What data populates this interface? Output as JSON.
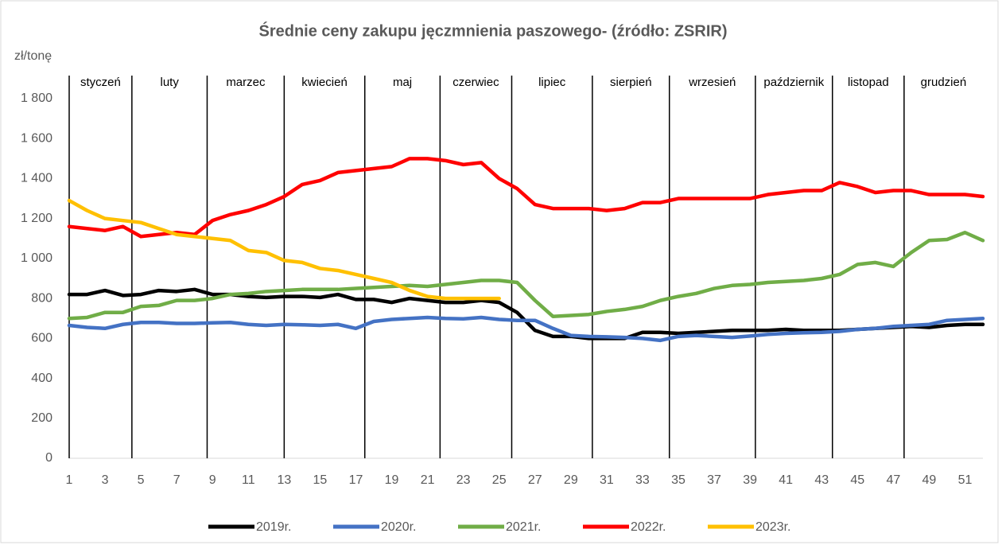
{
  "chart_data": {
    "type": "line",
    "title": "Średnie ceny zakupu jęczmnienia paszowego- (źródło: ZSRIR)",
    "y_label": "zł/tonę",
    "x": [
      1,
      2,
      3,
      4,
      5,
      6,
      7,
      8,
      9,
      10,
      11,
      12,
      13,
      14,
      15,
      16,
      17,
      18,
      19,
      20,
      21,
      22,
      23,
      24,
      25,
      26,
      27,
      28,
      29,
      30,
      31,
      32,
      33,
      34,
      35,
      36,
      37,
      38,
      39,
      40,
      41,
      42,
      43,
      44,
      45,
      46,
      47,
      48,
      49,
      50,
      51,
      52
    ],
    "xlim": [
      1,
      52
    ],
    "xticks": [
      1,
      3,
      5,
      7,
      9,
      11,
      13,
      15,
      17,
      19,
      21,
      23,
      25,
      27,
      29,
      31,
      33,
      35,
      37,
      39,
      41,
      43,
      45,
      47,
      49,
      51
    ],
    "ylim": [
      0,
      1800
    ],
    "yticks": [
      0,
      200,
      400,
      600,
      800,
      {
        "value": 1000,
        "label": "1 000"
      },
      {
        "value": 1200,
        "label": "1 200"
      },
      {
        "value": 1400,
        "label": "1 400"
      },
      {
        "value": 1600,
        "label": "1 600"
      },
      {
        "value": 1800,
        "label": "1 800"
      }
    ],
    "month_labels": [
      "styczeń",
      "luty",
      "marzec",
      "kwiecień",
      "maj",
      "czerwiec",
      "lipiec",
      "sierpień",
      "wrzesień",
      "październik",
      "listopad",
      "grudzień"
    ],
    "month_boundaries": [
      1,
      4.5,
      8.7,
      13,
      17.5,
      21.7,
      25.7,
      30.2,
      34.5,
      39.3,
      43.6,
      47.6
    ],
    "series": [
      {
        "name": "2019r.",
        "color": "#000000",
        "values": [
          820,
          820,
          840,
          815,
          820,
          840,
          835,
          845,
          820,
          820,
          810,
          805,
          810,
          810,
          805,
          820,
          795,
          795,
          780,
          800,
          790,
          780,
          780,
          790,
          780,
          730,
          640,
          610,
          610,
          600,
          600,
          600,
          630,
          630,
          625,
          630,
          635,
          640,
          640,
          640,
          645,
          640,
          640,
          640,
          645,
          650,
          655,
          660,
          655,
          665,
          670,
          670
        ]
      },
      {
        "name": "2020r.",
        "color": "#4472c4",
        "values": [
          665,
          655,
          650,
          670,
          680,
          680,
          675,
          675,
          678,
          680,
          670,
          665,
          670,
          668,
          665,
          670,
          650,
          685,
          695,
          700,
          705,
          700,
          698,
          705,
          695,
          690,
          690,
          650,
          615,
          610,
          608,
          605,
          600,
          590,
          610,
          615,
          610,
          605,
          612,
          620,
          625,
          628,
          630,
          635,
          645,
          650,
          660,
          665,
          670,
          690,
          695,
          700
        ]
      },
      {
        "name": "2021r.",
        "color": "#70ad47",
        "values": [
          700,
          705,
          730,
          730,
          760,
          765,
          790,
          790,
          800,
          820,
          825,
          835,
          840,
          845,
          845,
          845,
          850,
          855,
          860,
          865,
          860,
          870,
          880,
          890,
          890,
          880,
          790,
          710,
          715,
          720,
          735,
          745,
          760,
          790,
          810,
          825,
          850,
          865,
          870,
          880,
          885,
          890,
          900,
          920,
          970,
          980,
          960,
          1030,
          1090,
          1095,
          1130,
          1090
        ]
      },
      {
        "name": "2022r.",
        "color": "#ff0000",
        "values": [
          1160,
          1150,
          1140,
          1160,
          1110,
          1120,
          1130,
          1120,
          1190,
          1220,
          1240,
          1270,
          1310,
          1370,
          1390,
          1430,
          1440,
          1450,
          1460,
          1500,
          1500,
          1490,
          1470,
          1480,
          1400,
          1350,
          1270,
          1250,
          1250,
          1250,
          1240,
          1250,
          1280,
          1280,
          1300,
          1300,
          1300,
          1300,
          1300,
          1320,
          1330,
          1340,
          1340,
          1380,
          1360,
          1330,
          1340,
          1340,
          1320,
          1320,
          1320,
          1310
        ]
      },
      {
        "name": "2023r.",
        "color": "#ffc000",
        "values": [
          1290,
          1240,
          1200,
          1190,
          1180,
          1150,
          1120,
          1110,
          1100,
          1090,
          1040,
          1030,
          990,
          980,
          950,
          940,
          920,
          900,
          880,
          840,
          810,
          800,
          800,
          800,
          800,
          null,
          null,
          null,
          null,
          null,
          null,
          null,
          null,
          null,
          null,
          null,
          null,
          null,
          null,
          null,
          null,
          null,
          null,
          null,
          null,
          null,
          null,
          null,
          null,
          null,
          null,
          null
        ]
      }
    ]
  }
}
